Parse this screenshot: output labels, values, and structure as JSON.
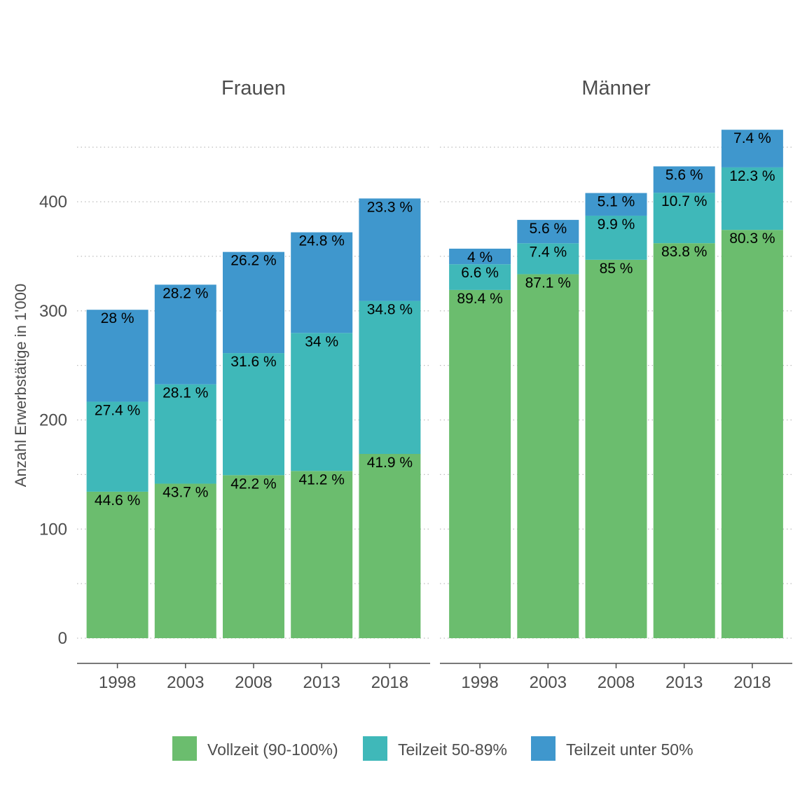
{
  "chart_data": {
    "type": "bar",
    "stacked": true,
    "ylabel": "Anzahl Erwerbstätige in 1'000",
    "ylim": [
      0,
      470
    ],
    "yticks": [
      0,
      100,
      200,
      300,
      400
    ],
    "grid": true,
    "legend_position": "bottom",
    "categories": [
      "1998",
      "2003",
      "2008",
      "2013",
      "2018"
    ],
    "series_names": [
      "Vollzeit (90-100%)",
      "Teilzeit 50-89%",
      "Teilzeit unter 50%"
    ],
    "colors": [
      "#6bbd6e",
      "#3fb8b9",
      "#3f97cd"
    ],
    "panels": [
      {
        "title": "Frauen",
        "totals": [
          301,
          324,
          354,
          372,
          403
        ],
        "percent": [
          [
            44.6,
            43.7,
            42.2,
            41.2,
            41.9
          ],
          [
            27.4,
            28.1,
            31.6,
            34,
            34.8
          ],
          [
            28,
            28.2,
            26.2,
            24.8,
            23.3
          ]
        ]
      },
      {
        "title": "Männer",
        "totals": [
          357,
          383,
          408,
          432,
          466
        ],
        "percent": [
          [
            89.4,
            87.1,
            85,
            83.8,
            80.3
          ],
          [
            6.6,
            7.4,
            9.9,
            10.7,
            12.3
          ],
          [
            4,
            5.6,
            5.1,
            5.6,
            7.4
          ]
        ]
      }
    ]
  }
}
